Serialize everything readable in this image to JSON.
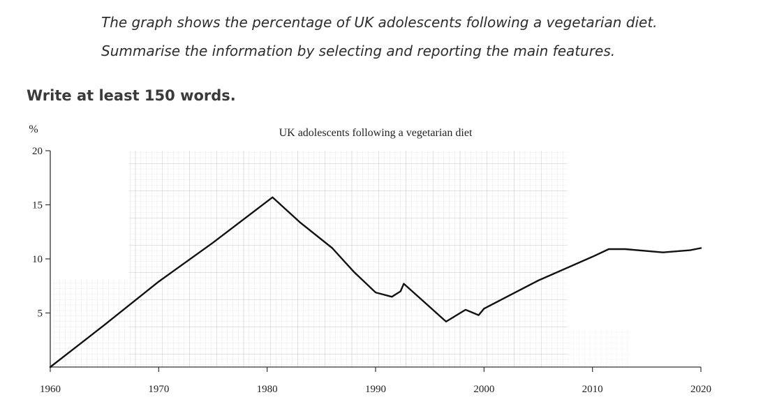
{
  "task": {
    "prompt_lines": [
      "The graph shows the percentage of UK adolescents following a vegetarian diet.",
      "Summarise the information by selecting and reporting the main features."
    ],
    "instruction": "Write at least 150 words."
  },
  "chart_data": {
    "type": "line",
    "title": "UK adolescents following a vegetarian diet",
    "ylabel": "%",
    "xlabel": "",
    "x_ticks": [
      "1960",
      "1970",
      "1980",
      "1990",
      "2000",
      "2010",
      "2020"
    ],
    "y_ticks": [
      "5",
      "10",
      "15",
      "20"
    ],
    "xlim": [
      1960,
      2020
    ],
    "ylim": [
      0,
      20
    ],
    "grid": "partial graph-paper background",
    "legend": "none",
    "line_color": "#111111",
    "series": [
      {
        "x": [
          1960,
          1965,
          1970,
          1975,
          1980.5,
          1983,
          1986,
          1988,
          1990,
          1991.5,
          1992.3,
          1992.6,
          1994.5,
          1996.5,
          1998.3,
          1999.5,
          2000,
          2005,
          2010,
          2011.5,
          2013,
          2016.5,
          2019,
          2020
        ],
        "values": [
          0,
          3.9,
          7.9,
          11.5,
          15.7,
          13.4,
          11,
          8.8,
          6.9,
          6.5,
          7.0,
          7.7,
          6.0,
          4.2,
          5.3,
          4.8,
          5.4,
          8.0,
          10.2,
          10.9,
          10.9,
          10.6,
          10.8,
          11.0
        ]
      }
    ]
  }
}
